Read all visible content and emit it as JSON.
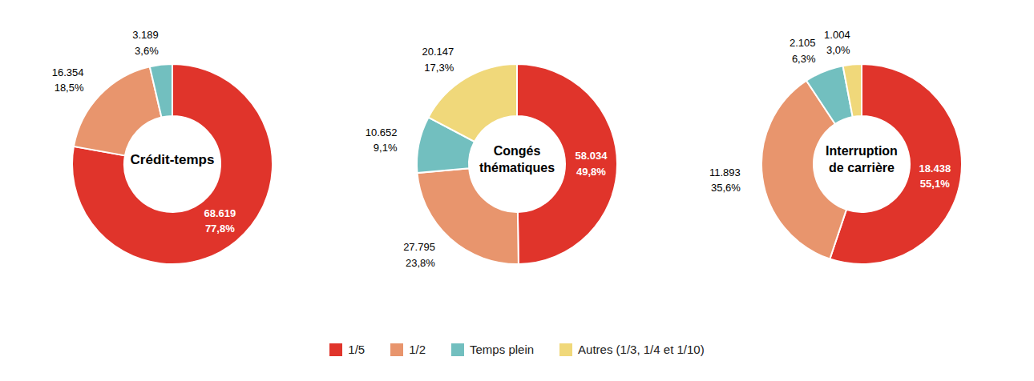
{
  "chart_data": [
    {
      "type": "donut",
      "title": "Crédit-temps",
      "categories": [
        "1/5",
        "1/2",
        "Temps plein"
      ],
      "values": [
        68.619,
        16.354,
        3.189
      ],
      "percentages": [
        77.8,
        18.5,
        3.6
      ],
      "percentage_labels": [
        "77,8%",
        "18,5%",
        "3,6%"
      ],
      "colors": [
        "#e0342b",
        "#e8956d",
        "#72bfbf"
      ],
      "data_labels": true,
      "legend": "bottom"
    },
    {
      "type": "donut",
      "title": "Congés\nthématiques",
      "categories": [
        "1/5",
        "1/2",
        "Temps plein",
        "Autres (1/3, 1/4 et 1/10)"
      ],
      "values": [
        58.034,
        27.795,
        10.652,
        20.147
      ],
      "percentages": [
        49.8,
        23.8,
        9.1,
        17.3
      ],
      "percentage_labels": [
        "49,8%",
        "23,8%",
        "9,1%",
        "17,3%"
      ],
      "colors": [
        "#e0342b",
        "#e8956d",
        "#72bfbf",
        "#f0d87a"
      ],
      "data_labels": true,
      "legend": "bottom"
    },
    {
      "type": "donut",
      "title": "Interruption\nde carrière",
      "categories": [
        "1/5",
        "1/2",
        "Temps plein",
        "Autres (1/3, 1/4 et 1/10)"
      ],
      "values": [
        18.438,
        11.893,
        2.105,
        1.004
      ],
      "percentages": [
        55.1,
        35.6,
        6.3,
        3.0
      ],
      "percentage_labels": [
        "55,1%",
        "35,6%",
        "6,3%",
        "3,0%"
      ],
      "colors": [
        "#e0342b",
        "#e8956d",
        "#72bfbf",
        "#f0d87a"
      ],
      "data_labels": true,
      "legend": "bottom"
    }
  ]
}
